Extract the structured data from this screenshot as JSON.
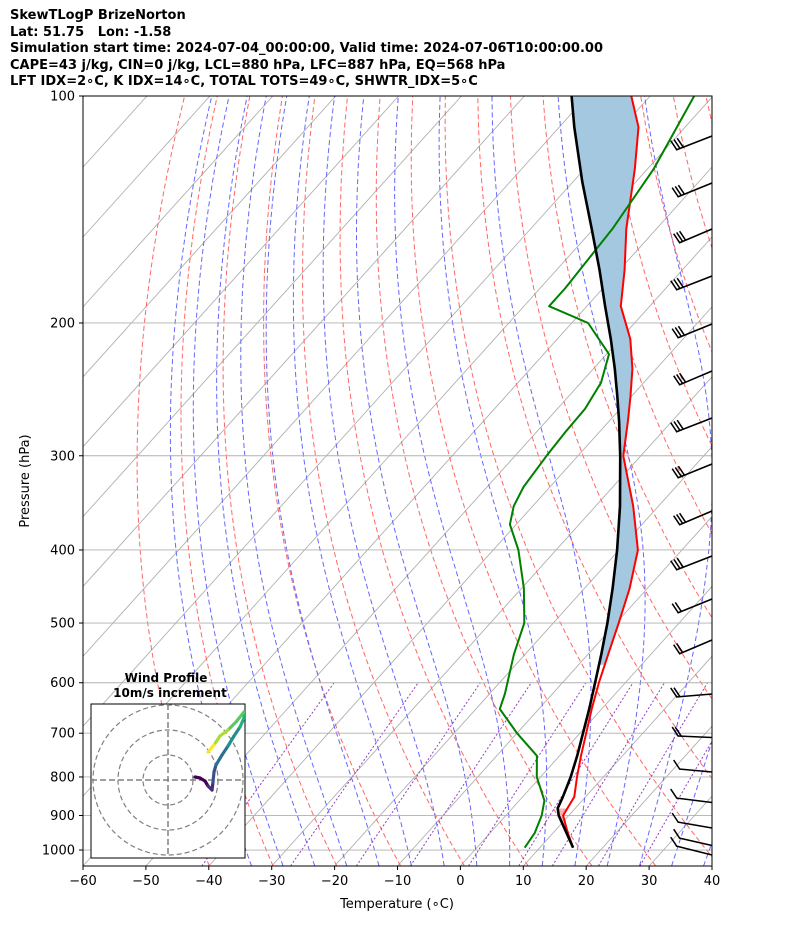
{
  "header": {
    "line1": "SkewTLogP BrizeNorton",
    "line2": "Lat: 51.75   Lon: -1.58",
    "line3": "Simulation start time: 2024-07-04_00:00:00, Valid time: 2024-07-06T10:00:00.00",
    "line4": "CAPE=43 j/kg, CIN=0 j/kg, LCL=880 hPa, LFC=887 hPa, EQ=568 hPa",
    "line5": "LFT IDX=2∘C, K IDX=14∘C, TOTAL TOTS=49∘C, SHWTR_IDX=5∘C"
  },
  "chart_data": {
    "type": "line",
    "xlabel": "Temperature (∘C)",
    "ylabel": "Pressure (hPa)",
    "xlim": [
      -60,
      40
    ],
    "ylim": [
      1050,
      100
    ],
    "y_scale": "log",
    "x_ticks": [
      "−60",
      "−50",
      "−40",
      "−30",
      "−20",
      "−10",
      "0",
      "10",
      "20",
      "30",
      "40"
    ],
    "x_tick_values": [
      -60,
      -50,
      -40,
      -30,
      -20,
      -10,
      0,
      10,
      20,
      30,
      40
    ],
    "y_ticks": [
      "1000",
      "900",
      "800",
      "700",
      "600",
      "500",
      "400",
      "300",
      "200",
      "100"
    ],
    "y_tick_values": [
      1000,
      900,
      800,
      700,
      600,
      500,
      400,
      300,
      200,
      100
    ],
    "colors": {
      "temperature": "#ff0000",
      "dewpoint": "#008000",
      "parcel": "#000000",
      "cape_fill": "#a4c8e0",
      "dry_adiabats": "#ff6666",
      "moist_adiabats": "#6666ff",
      "mixing_ratio": "#9040c0",
      "isotherms": "#b0b0b0"
    },
    "grid": true,
    "series": [
      {
        "key": "temperature",
        "points": [
          [
            993,
            15.3
          ],
          [
            950,
            12.4
          ],
          [
            900,
            9.1
          ],
          [
            850,
            8.2
          ],
          [
            800,
            5.8
          ],
          [
            750,
            3.4
          ],
          [
            700,
            1.0
          ],
          [
            650,
            -1.6
          ],
          [
            600,
            -4.2
          ],
          [
            550,
            -6.8
          ],
          [
            500,
            -9.6
          ],
          [
            450,
            -12.8
          ],
          [
            400,
            -17.0
          ],
          [
            350,
            -24.0
          ],
          [
            300,
            -32.8
          ],
          [
            270,
            -37.0
          ],
          [
            250,
            -40.2
          ],
          [
            230,
            -43.8
          ],
          [
            210,
            -48.4
          ],
          [
            190,
            -54.6
          ],
          [
            170,
            -59.2
          ],
          [
            150,
            -64.8
          ],
          [
            125,
            -72.0
          ],
          [
            110,
            -77.4
          ],
          [
            100,
            -83.0
          ]
        ]
      },
      {
        "key": "dewpoint",
        "points": [
          [
            993,
            7.6
          ],
          [
            950,
            7.1
          ],
          [
            900,
            5.7
          ],
          [
            860,
            4.0
          ],
          [
            800,
            -0.6
          ],
          [
            750,
            -3.6
          ],
          [
            700,
            -10.0
          ],
          [
            650,
            -16.2
          ],
          [
            620,
            -17.6
          ],
          [
            550,
            -21.8
          ],
          [
            500,
            -24.6
          ],
          [
            450,
            -29.6
          ],
          [
            400,
            -36.0
          ],
          [
            370,
            -41.0
          ],
          [
            350,
            -43.0
          ],
          [
            330,
            -44.2
          ],
          [
            300,
            -45.0
          ],
          [
            280,
            -45.4
          ],
          [
            260,
            -45.6
          ],
          [
            240,
            -46.8
          ],
          [
            220,
            -49.6
          ],
          [
            200,
            -57.4
          ],
          [
            190,
            -66.0
          ],
          [
            180,
            -66.0
          ],
          [
            150,
            -67.0
          ],
          [
            125,
            -69.0
          ],
          [
            100,
            -73.0
          ]
        ]
      },
      {
        "key": "parcel",
        "points": [
          [
            993,
            15.3
          ],
          [
            900,
            8.4
          ],
          [
            880,
            7.2
          ],
          [
            850,
            6.4
          ],
          [
            800,
            4.8
          ],
          [
            750,
            2.8
          ],
          [
            700,
            0.5
          ],
          [
            650,
            -2.0
          ],
          [
            600,
            -4.8
          ],
          [
            550,
            -7.9
          ],
          [
            500,
            -11.4
          ],
          [
            450,
            -15.5
          ],
          [
            400,
            -20.3
          ],
          [
            350,
            -26.1
          ],
          [
            300,
            -33.3
          ],
          [
            270,
            -38.4
          ],
          [
            250,
            -42.3
          ],
          [
            230,
            -46.6
          ],
          [
            210,
            -51.5
          ],
          [
            190,
            -57.1
          ],
          [
            170,
            -63.2
          ],
          [
            150,
            -70.3
          ],
          [
            130,
            -78.5
          ],
          [
            110,
            -87.6
          ],
          [
            100,
            -92.5
          ]
        ]
      }
    ],
    "wind_barbs_visible": true,
    "hodograph": {
      "title": "Wind Profile",
      "subtitle": "10m/s increment"
    }
  }
}
